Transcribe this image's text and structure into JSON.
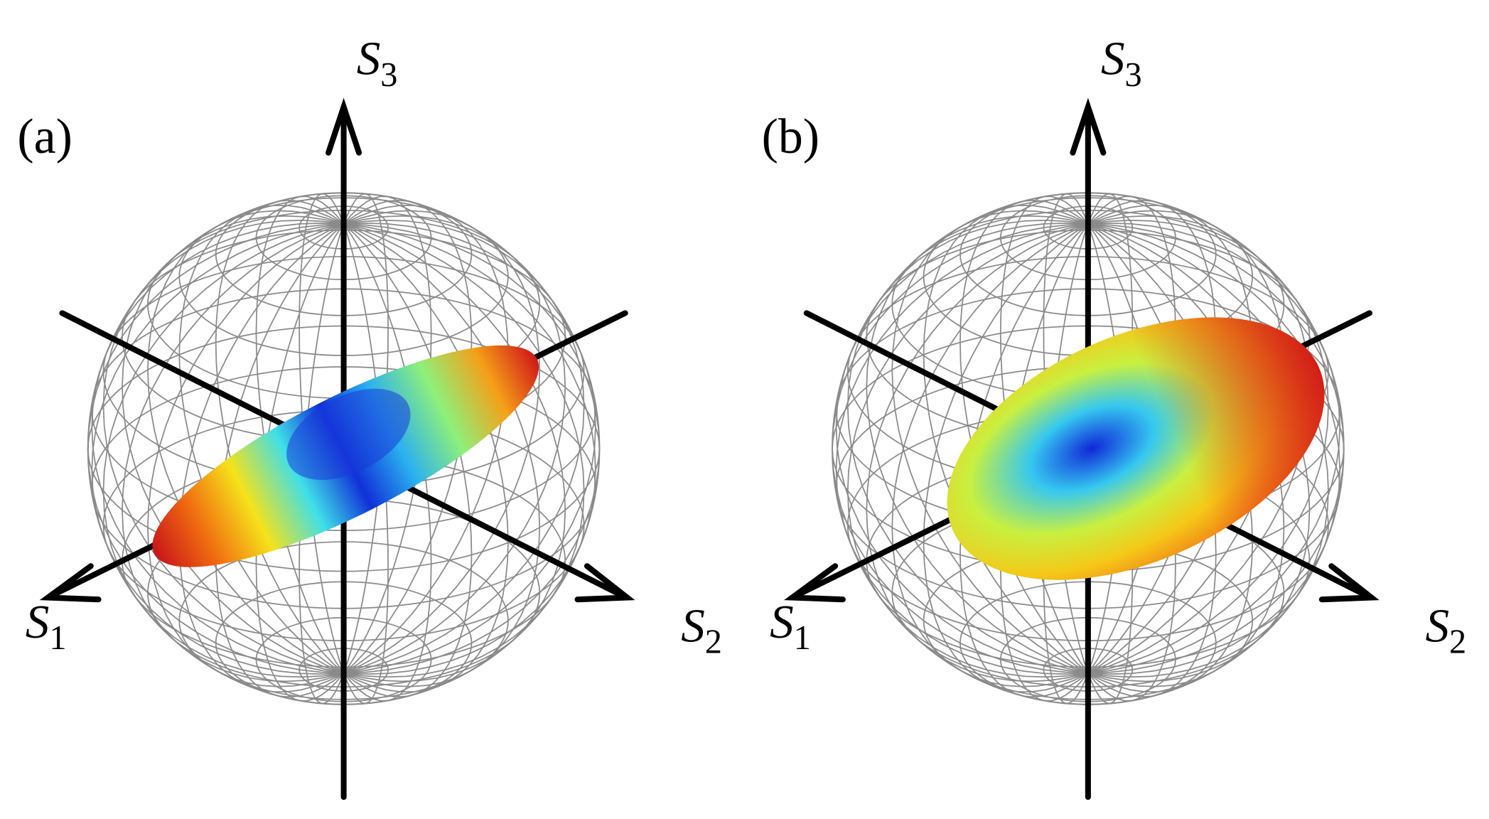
{
  "panels": [
    {
      "label": "(a)",
      "axes": {
        "s3": {
          "symbol": "S",
          "subscript": "3"
        },
        "s1": {
          "symbol": "S",
          "subscript": "1"
        },
        "s2": {
          "symbol": "S",
          "subscript": "2"
        }
      }
    },
    {
      "label": "(b)",
      "axes": {
        "s3": {
          "symbol": "S",
          "subscript": "3"
        },
        "s1": {
          "symbol": "S",
          "subscript": "1"
        },
        "s2": {
          "symbol": "S",
          "subscript": "2"
        }
      }
    }
  ]
}
